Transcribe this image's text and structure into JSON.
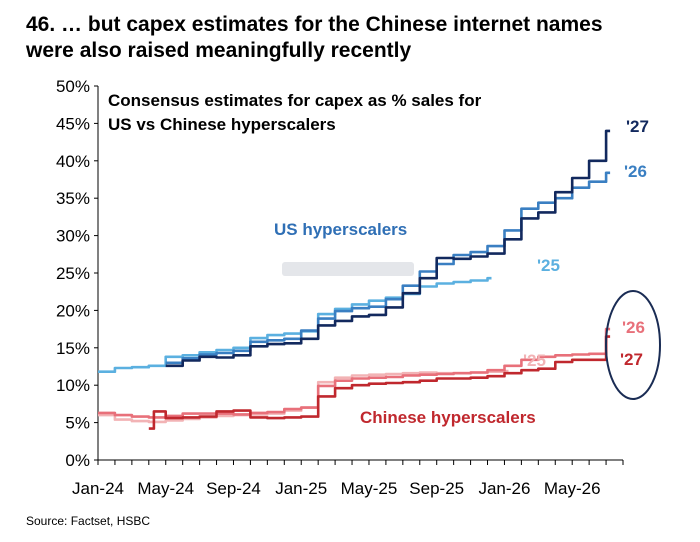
{
  "title_line1": "46. … but capex estimates for the Chinese internet names",
  "title_line2": "were also raised meaningfully recently",
  "source": "Source: Factset, HSBC",
  "chart_data": {
    "type": "line",
    "subtitle_line1": "Consensus estimates for capex as % sales for",
    "subtitle_line2": "US vs Chinese hyperscalers",
    "x_ticks": [
      "Jan-24",
      "May-24",
      "Sep-24",
      "Jan-25",
      "May-25",
      "Sep-25",
      "Jan-26",
      "May-26"
    ],
    "y_ticks": [
      "0%",
      "5%",
      "10%",
      "15%",
      "20%",
      "25%",
      "30%",
      "35%",
      "40%",
      "45%",
      "50%"
    ],
    "ylim": [
      0,
      50
    ],
    "xlim": [
      0,
      31
    ],
    "annotations": {
      "us": {
        "text": "US hyperscalers",
        "color": "#2f6fb5"
      },
      "cn": {
        "text": "Chinese hyperscalers",
        "color": "#c0282e"
      }
    },
    "series": [
      {
        "name": "'25",
        "group": "US",
        "color": "#5bb0e0",
        "points": [
          [
            0,
            11.8
          ],
          [
            1,
            12.3
          ],
          [
            2,
            12.4
          ],
          [
            3,
            12.6
          ],
          [
            4,
            13.8
          ],
          [
            5,
            14.0
          ],
          [
            6,
            14.4
          ],
          [
            7,
            14.7
          ],
          [
            8,
            15.0
          ],
          [
            9,
            16.3
          ],
          [
            10,
            16.7
          ],
          [
            11,
            16.9
          ],
          [
            12,
            17.2
          ],
          [
            13,
            19.5
          ],
          [
            14,
            20.2
          ],
          [
            15,
            20.8
          ],
          [
            16,
            21.3
          ],
          [
            17,
            21.7
          ],
          [
            18,
            22.2
          ],
          [
            19,
            23.2
          ],
          [
            20,
            23.6
          ],
          [
            21,
            23.8
          ],
          [
            22,
            24.0
          ],
          [
            23,
            24.3
          ]
        ]
      },
      {
        "name": "'26",
        "group": "US",
        "color": "#3a7fc2",
        "points": [
          [
            4,
            13.0
          ],
          [
            5,
            13.6
          ],
          [
            6,
            14.1
          ],
          [
            7,
            14.3
          ],
          [
            8,
            14.6
          ],
          [
            9,
            15.8
          ],
          [
            10,
            16.0
          ],
          [
            11,
            16.2
          ],
          [
            12,
            17.3
          ],
          [
            13,
            18.9
          ],
          [
            14,
            19.9
          ],
          [
            15,
            20.3
          ],
          [
            16,
            20.5
          ],
          [
            17,
            21.5
          ],
          [
            18,
            23.3
          ],
          [
            19,
            25.2
          ],
          [
            20,
            26.2
          ],
          [
            21,
            27.4
          ],
          [
            22,
            27.8
          ],
          [
            23,
            28.6
          ],
          [
            24,
            30.7
          ],
          [
            25,
            33.6
          ],
          [
            26,
            34.4
          ],
          [
            27,
            35.0
          ],
          [
            28,
            36.4
          ],
          [
            29,
            37.2
          ],
          [
            30,
            38.4
          ]
        ]
      },
      {
        "name": "'27",
        "group": "US",
        "color": "#12295e",
        "points": [
          [
            4,
            12.6
          ],
          [
            5,
            13.3
          ],
          [
            6,
            13.8
          ],
          [
            7,
            13.7
          ],
          [
            8,
            14.0
          ],
          [
            9,
            15.2
          ],
          [
            10,
            15.5
          ],
          [
            11,
            15.6
          ],
          [
            12,
            16.2
          ],
          [
            13,
            18.0
          ],
          [
            14,
            18.6
          ],
          [
            15,
            19.2
          ],
          [
            16,
            19.4
          ],
          [
            17,
            20.4
          ],
          [
            18,
            22.3
          ],
          [
            19,
            24.3
          ],
          [
            20,
            27.0
          ],
          [
            21,
            26.9
          ],
          [
            22,
            27.2
          ],
          [
            23,
            27.6
          ],
          [
            24,
            29.5
          ],
          [
            25,
            32.3
          ],
          [
            26,
            33.1
          ],
          [
            27,
            35.8
          ],
          [
            28,
            37.7
          ],
          [
            29,
            40.0
          ],
          [
            30,
            44.0
          ]
        ]
      },
      {
        "name": "'25",
        "group": "CN",
        "color": "#f2b3b5",
        "points": [
          [
            0,
            6.0
          ],
          [
            1,
            5.4
          ],
          [
            2,
            5.2
          ],
          [
            3,
            5.1
          ],
          [
            4,
            5.3
          ],
          [
            5,
            5.5
          ],
          [
            6,
            5.7
          ],
          [
            7,
            5.9
          ],
          [
            8,
            6.0
          ],
          [
            9,
            6.1
          ],
          [
            10,
            6.2
          ],
          [
            11,
            6.6
          ],
          [
            12,
            7.0
          ],
          [
            13,
            10.4
          ],
          [
            14,
            11.0
          ],
          [
            15,
            11.3
          ],
          [
            16,
            11.4
          ],
          [
            17,
            11.5
          ],
          [
            18,
            11.6
          ],
          [
            19,
            11.7
          ],
          [
            20,
            11.6
          ],
          [
            21,
            11.6
          ],
          [
            22,
            11.7
          ],
          [
            23,
            11.8
          ],
          [
            24,
            11.9
          ]
        ]
      },
      {
        "name": "'26",
        "group": "CN",
        "color": "#e8707a",
        "points": [
          [
            0,
            6.3
          ],
          [
            1,
            6.0
          ],
          [
            2,
            5.8
          ],
          [
            3,
            5.7
          ],
          [
            4,
            5.9
          ],
          [
            5,
            6.2
          ],
          [
            6,
            6.2
          ],
          [
            7,
            6.2
          ],
          [
            8,
            6.1
          ],
          [
            9,
            6.3
          ],
          [
            10,
            6.4
          ],
          [
            11,
            6.8
          ],
          [
            12,
            7.0
          ],
          [
            13,
            9.9
          ],
          [
            14,
            10.6
          ],
          [
            15,
            10.9
          ],
          [
            16,
            11.0
          ],
          [
            17,
            11.1
          ],
          [
            18,
            11.3
          ],
          [
            19,
            11.4
          ],
          [
            20,
            11.5
          ],
          [
            21,
            11.6
          ],
          [
            22,
            11.7
          ],
          [
            23,
            12.0
          ],
          [
            24,
            12.6
          ],
          [
            25,
            13.4
          ],
          [
            26,
            13.8
          ],
          [
            27,
            14.0
          ],
          [
            28,
            14.1
          ],
          [
            29,
            14.2
          ],
          [
            30,
            17.5
          ]
        ]
      },
      {
        "name": "'27",
        "group": "CN",
        "color": "#c0282e",
        "points": [
          [
            3,
            4.2
          ],
          [
            3.3,
            6.5
          ],
          [
            4,
            5.6
          ],
          [
            5,
            5.7
          ],
          [
            6,
            5.8
          ],
          [
            7,
            6.5
          ],
          [
            8,
            6.6
          ],
          [
            9,
            5.7
          ],
          [
            10,
            5.6
          ],
          [
            11,
            5.7
          ],
          [
            12,
            5.8
          ],
          [
            13,
            8.5
          ],
          [
            14,
            9.6
          ],
          [
            15,
            10.0
          ],
          [
            16,
            10.2
          ],
          [
            17,
            10.3
          ],
          [
            18,
            10.4
          ],
          [
            19,
            10.6
          ],
          [
            20,
            10.9
          ],
          [
            21,
            10.9
          ],
          [
            22,
            11.0
          ],
          [
            23,
            11.2
          ],
          [
            24,
            11.6
          ],
          [
            25,
            12.0
          ],
          [
            26,
            12.2
          ],
          [
            27,
            13.1
          ],
          [
            28,
            13.4
          ],
          [
            29,
            13.4
          ],
          [
            30,
            16.5
          ]
        ]
      }
    ]
  }
}
